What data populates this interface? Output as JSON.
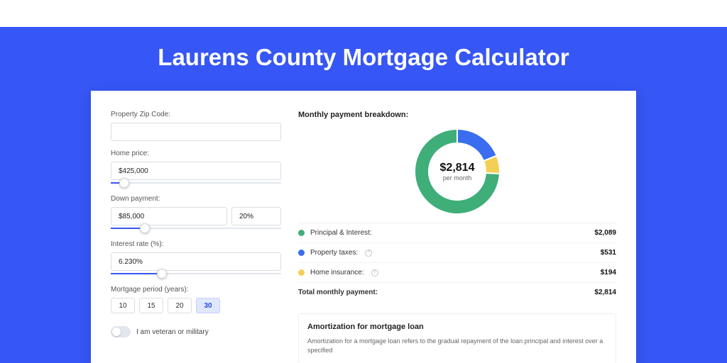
{
  "title": "Laurens County Mortgage Calculator",
  "colors": {
    "band": "#3656f5",
    "series": {
      "principal": "#3fae79",
      "taxes": "#3a6def",
      "insurance": "#f3cf55"
    }
  },
  "form": {
    "zip": {
      "label": "Property Zip Code:",
      "value": ""
    },
    "home_price": {
      "label": "Home price:",
      "value": "$425,000",
      "slider_pct": 8
    },
    "down_payment": {
      "label": "Down payment:",
      "value": "$85,000",
      "pct": "20%",
      "slider_pct": 20
    },
    "interest_rate": {
      "label": "Interest rate (%):",
      "value": "6.230%",
      "slider_pct": 30
    },
    "period": {
      "label": "Mortgage period (years):",
      "options": [
        "10",
        "15",
        "20",
        "30"
      ],
      "selected": "30"
    },
    "veteran": {
      "label": "I am veteran or military",
      "checked": false
    }
  },
  "breakdown": {
    "title": "Monthly payment breakdown:",
    "center_amount": "$2,814",
    "center_sub": "per month",
    "items": [
      {
        "key": "principal",
        "label": "Principal & Interest:",
        "value": "$2,089",
        "pct": 74.2,
        "info": false
      },
      {
        "key": "taxes",
        "label": "Property taxes:",
        "value": "$531",
        "pct": 18.9,
        "info": true
      },
      {
        "key": "insurance",
        "label": "Home insurance:",
        "value": "$194",
        "pct": 6.9,
        "info": true
      }
    ],
    "total": {
      "label": "Total monthly payment:",
      "value": "$2,814"
    }
  },
  "amort": {
    "title": "Amortization for mortgage loan",
    "text": "Amortization for a mortgage loan refers to the gradual repayment of the loan principal and interest over a specified"
  }
}
